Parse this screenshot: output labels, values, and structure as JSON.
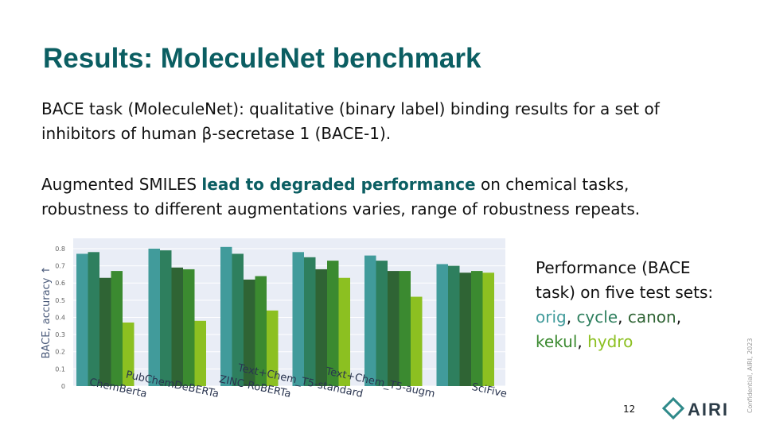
{
  "header": {
    "title": "Results: MoleculeNet benchmark"
  },
  "body": {
    "paragraph1": "BACE task (MoleculeNet): qualitative (binary label) binding results for a set of inhibitors of human β-secretase 1 (BACE-1).",
    "paragraph2": [
      "Augmented SMILES ",
      "lead to degraded performance",
      " on chemical tasks, robustness to different augmentations varies, range of robustness repeats."
    ]
  },
  "side_note": {
    "lead": "Performance (BACE task) on five test sets:",
    "separator": ","
  },
  "footer": {
    "page": "12",
    "confidential": "Confidential, AIRI, 2023",
    "logo": "AIRI"
  },
  "chart_data": {
    "type": "bar",
    "y_label": "BACE, accuracy ↑",
    "categories": [
      "ChemBerta",
      "PubChemDeBERTa",
      "ZINC-RoBERTa",
      "Text+Chem_T5-standard",
      "Text+Chem_T5-augm",
      "SciFive"
    ],
    "series": [
      {
        "name": "orig",
        "color": "#419b9b",
        "values": [
          0.77,
          0.8,
          0.81,
          0.78,
          0.76,
          0.71
        ]
      },
      {
        "name": "cycle",
        "color": "#2e7f5e",
        "values": [
          0.78,
          0.79,
          0.77,
          0.75,
          0.73,
          0.7
        ]
      },
      {
        "name": "canon",
        "color": "#2f6434",
        "values": [
          0.63,
          0.69,
          0.62,
          0.68,
          0.67,
          0.66
        ]
      },
      {
        "name": "kekul",
        "color": "#3b8a30",
        "values": [
          0.67,
          0.68,
          0.64,
          0.73,
          0.67,
          0.67
        ]
      },
      {
        "name": "hydro",
        "color": "#8cc021",
        "values": [
          0.37,
          0.38,
          0.44,
          0.63,
          0.52,
          0.66
        ]
      }
    ],
    "ylim": [
      0,
      0.86
    ],
    "yticks": [
      0,
      0.1,
      0.2,
      0.3,
      0.4,
      0.5,
      0.6,
      0.7,
      0.8
    ],
    "grid": true
  }
}
